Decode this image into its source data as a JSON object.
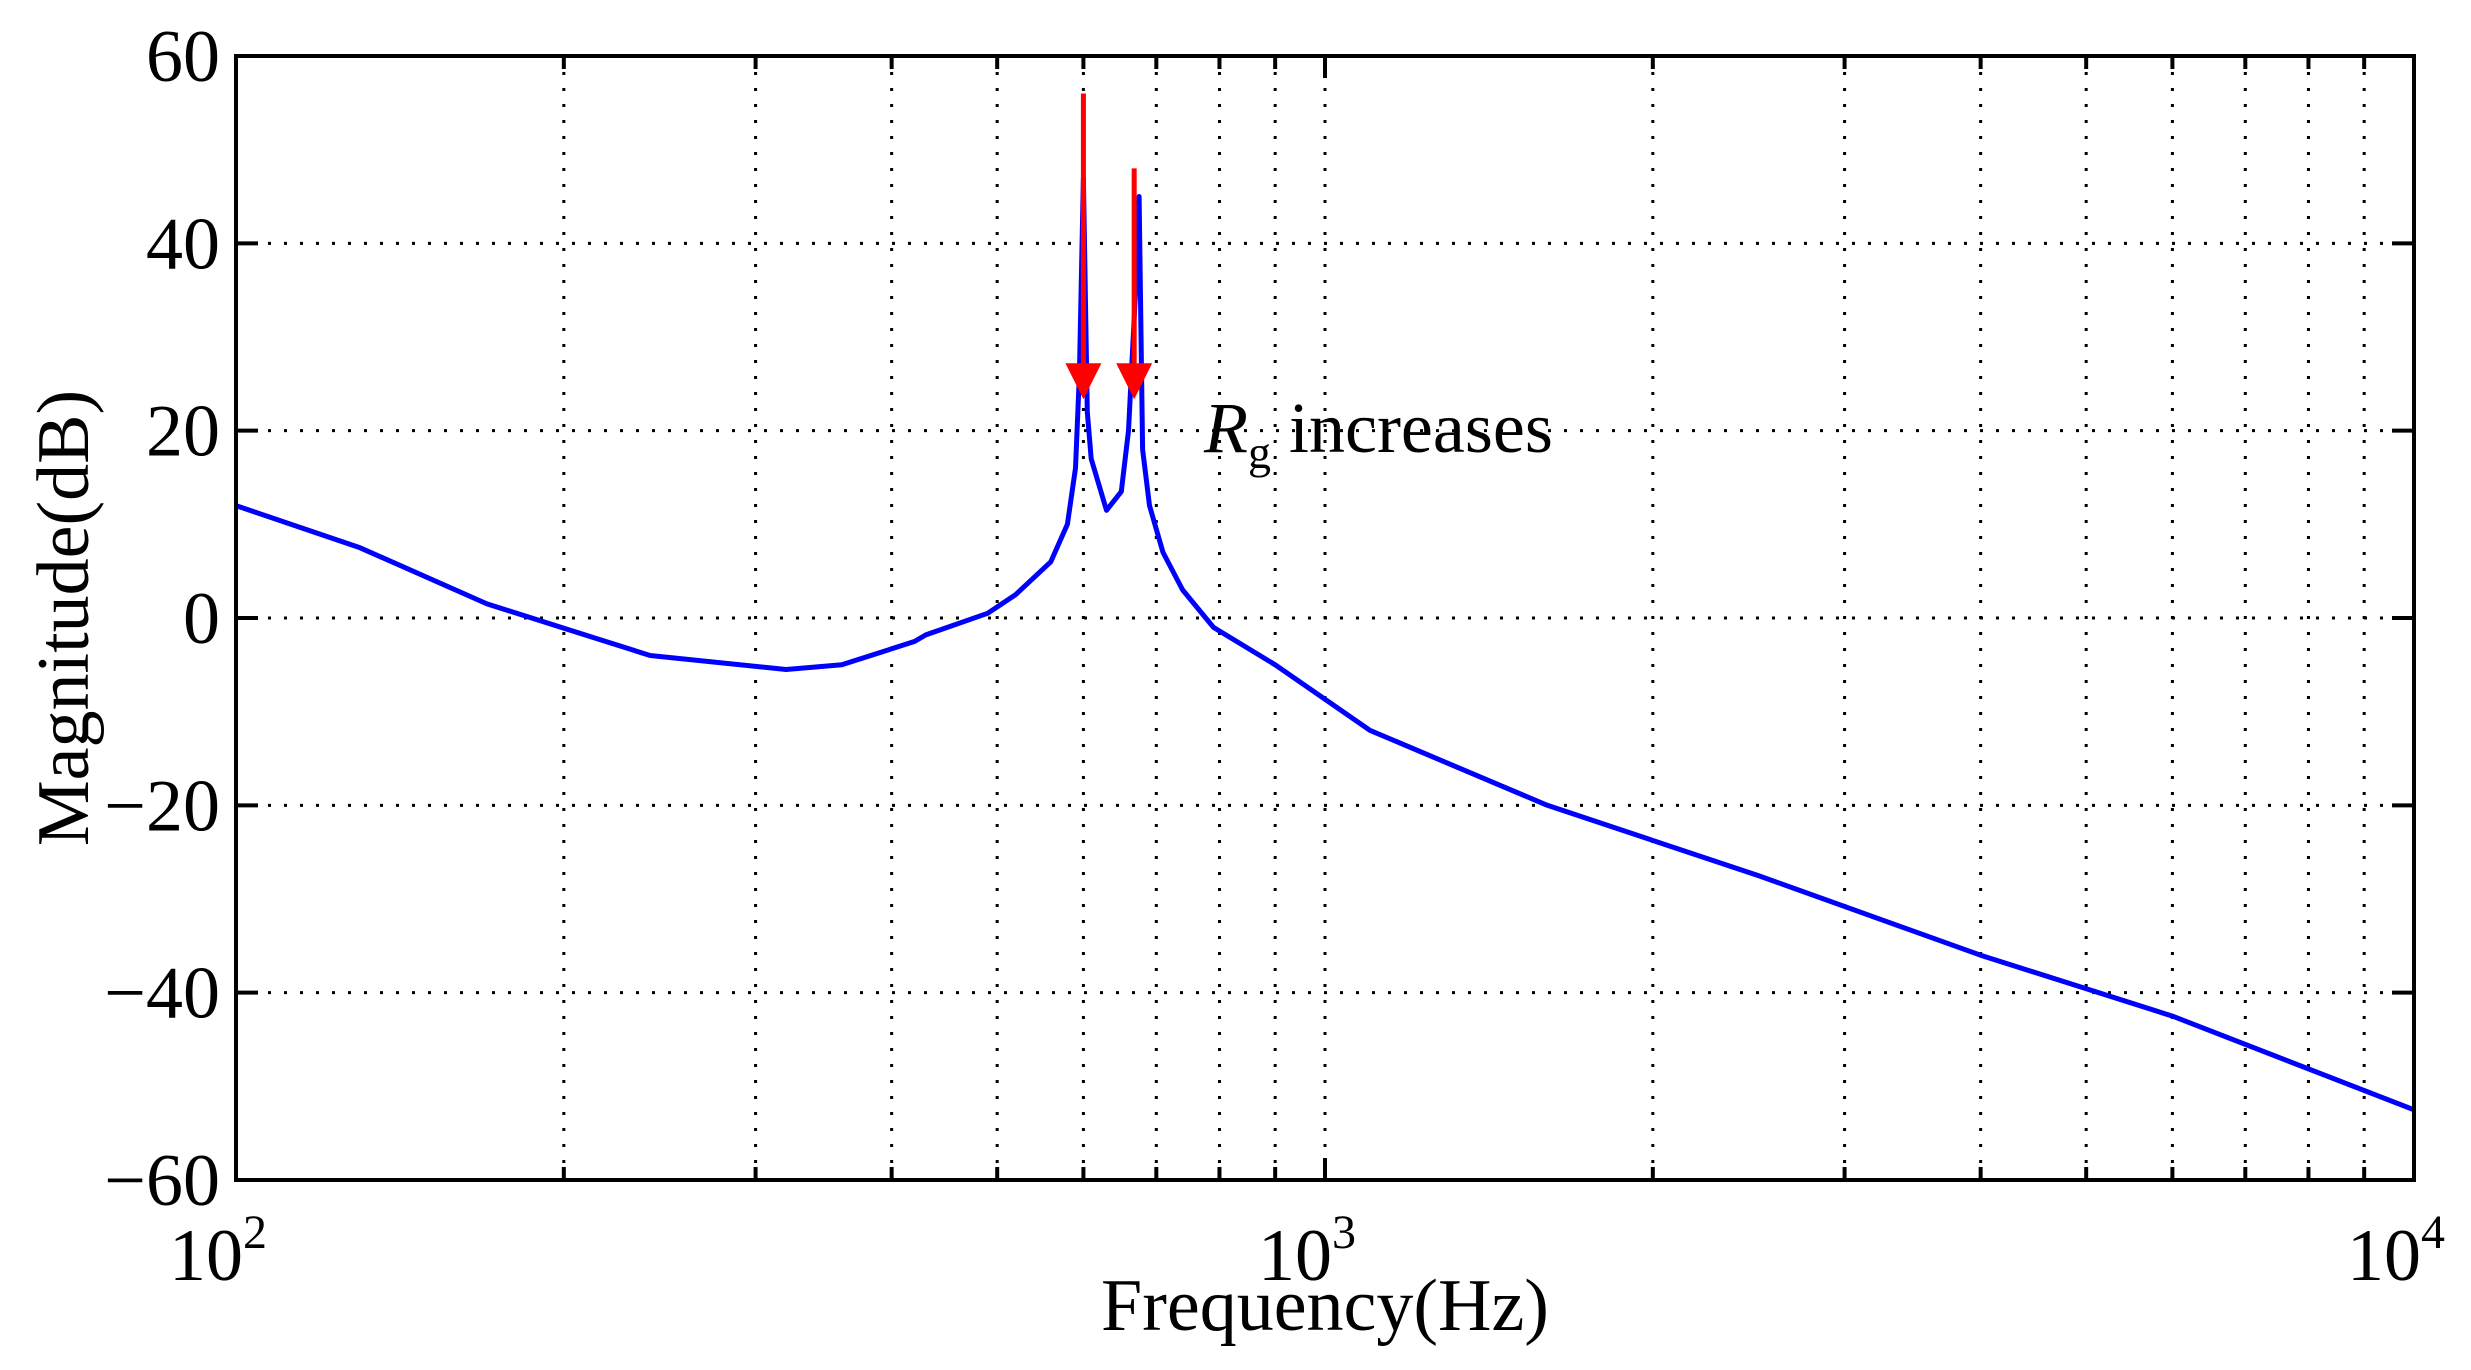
{
  "chart_data": {
    "type": "line",
    "xscale": "log",
    "title": "",
    "xlabel": "Frequency(Hz)",
    "ylabel": "Magnitude(dB)",
    "xlim": [
      100,
      10000
    ],
    "ylim": [
      -60,
      60
    ],
    "grid": true,
    "yticks": [
      60,
      40,
      20,
      0,
      -20,
      -40,
      -60
    ],
    "ytick_labels": [
      "60",
      "40",
      "20",
      "0",
      "−20",
      "−40",
      "−60"
    ],
    "xticks": [
      {
        "value": 100,
        "base": "10",
        "exp": "2"
      },
      {
        "value": 1000,
        "base": "10",
        "exp": "3"
      },
      {
        "value": 10000,
        "base": "10",
        "exp": "4"
      }
    ],
    "series": [
      {
        "name": "Magnitude",
        "color": "#0000ff",
        "x": [
          100,
          130,
          170,
          240,
          320,
          360,
          420,
          430,
          490,
          520,
          560,
          580,
          590,
          595,
          600,
          605,
          610,
          630,
          650,
          660,
          670,
          675,
          680,
          690,
          710,
          740,
          790,
          900,
          1100,
          1600,
          2500,
          4000,
          6000,
          10000
        ],
        "y": [
          12,
          7.5,
          1.5,
          -4,
          -5.5,
          -5,
          -2.5,
          -1.8,
          0.5,
          2.5,
          6,
          10,
          16,
          26,
          47,
          22,
          17,
          11.5,
          13.5,
          20,
          35,
          45,
          18,
          12,
          7,
          3,
          -1,
          -5,
          -12,
          -20,
          -27.5,
          -36,
          -42.5,
          -52.5
        ]
      }
    ],
    "annotations": [
      {
        "text_main": "R",
        "text_sub": "g",
        "text_rest": " increases",
        "x": 730,
        "y": 20,
        "note": "red arrows at peaks pointing down"
      }
    ],
    "arrows": [
      {
        "x": 600,
        "y_from": 56,
        "y_to": 24,
        "color": "#ff0000"
      },
      {
        "x": 668,
        "y_from": 48,
        "y_to": 24,
        "color": "#ff0000"
      }
    ]
  }
}
